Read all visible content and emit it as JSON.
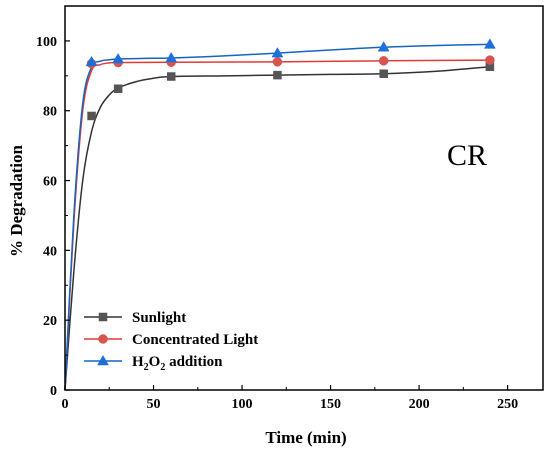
{
  "chart_data": {
    "type": "line",
    "title": "",
    "xlabel": "Time (min)",
    "ylabel": "% Degradation",
    "xlim": [
      0,
      270
    ],
    "ylim": [
      0,
      110
    ],
    "xticks": [
      0,
      50,
      100,
      150,
      200,
      250
    ],
    "yticks": [
      0,
      20,
      40,
      60,
      80,
      100
    ],
    "annotation": "CR",
    "legend_position": "bottom-left",
    "grid": false,
    "series": [
      {
        "name": "Sunlight",
        "marker": "square",
        "line_color": "#333333",
        "marker_color": "#555555",
        "x": [
          15,
          30,
          60,
          120,
          180,
          240
        ],
        "y": [
          78.5,
          86.3,
          89.8,
          90.2,
          90.6,
          92.6
        ],
        "curve_x": [
          0,
          5,
          10,
          15,
          20,
          25,
          30,
          40,
          50,
          60,
          90,
          120,
          150,
          180,
          210,
          240
        ],
        "curve_y": [
          0,
          34,
          60,
          74,
          81,
          84.5,
          86.5,
          88.3,
          89.3,
          89.8,
          90.0,
          90.2,
          90.4,
          90.6,
          91.3,
          92.6
        ]
      },
      {
        "name": "Concentrated Light",
        "marker": "circle",
        "line_color": "#e53935",
        "marker_color": "#d9534f",
        "x": [
          15,
          30,
          60,
          120,
          180,
          240
        ],
        "y": [
          93.5,
          93.8,
          93.9,
          94.0,
          94.3,
          94.5
        ],
        "curve_x": [
          0,
          5,
          10,
          15,
          20,
          25,
          30,
          60,
          120,
          180,
          240
        ],
        "curve_y": [
          0,
          48,
          80,
          91.5,
          93.2,
          93.7,
          93.8,
          93.9,
          94.0,
          94.3,
          94.5
        ]
      },
      {
        "name": "H2O2 addition",
        "marker": "triangle",
        "line_color": "#1565c0",
        "marker_color": "#1e6fd9",
        "x": [
          15,
          30,
          60,
          120,
          180,
          240
        ],
        "y": [
          94.0,
          94.8,
          95.1,
          96.5,
          98.2,
          99.0
        ],
        "curve_x": [
          0,
          5,
          10,
          15,
          20,
          25,
          30,
          45,
          60,
          90,
          120,
          150,
          180,
          210,
          240
        ],
        "curve_y": [
          0,
          50,
          82,
          92.5,
          94.2,
          94.6,
          94.8,
          95.0,
          95.1,
          95.7,
          96.5,
          97.4,
          98.2,
          98.7,
          99.0
        ]
      }
    ]
  }
}
